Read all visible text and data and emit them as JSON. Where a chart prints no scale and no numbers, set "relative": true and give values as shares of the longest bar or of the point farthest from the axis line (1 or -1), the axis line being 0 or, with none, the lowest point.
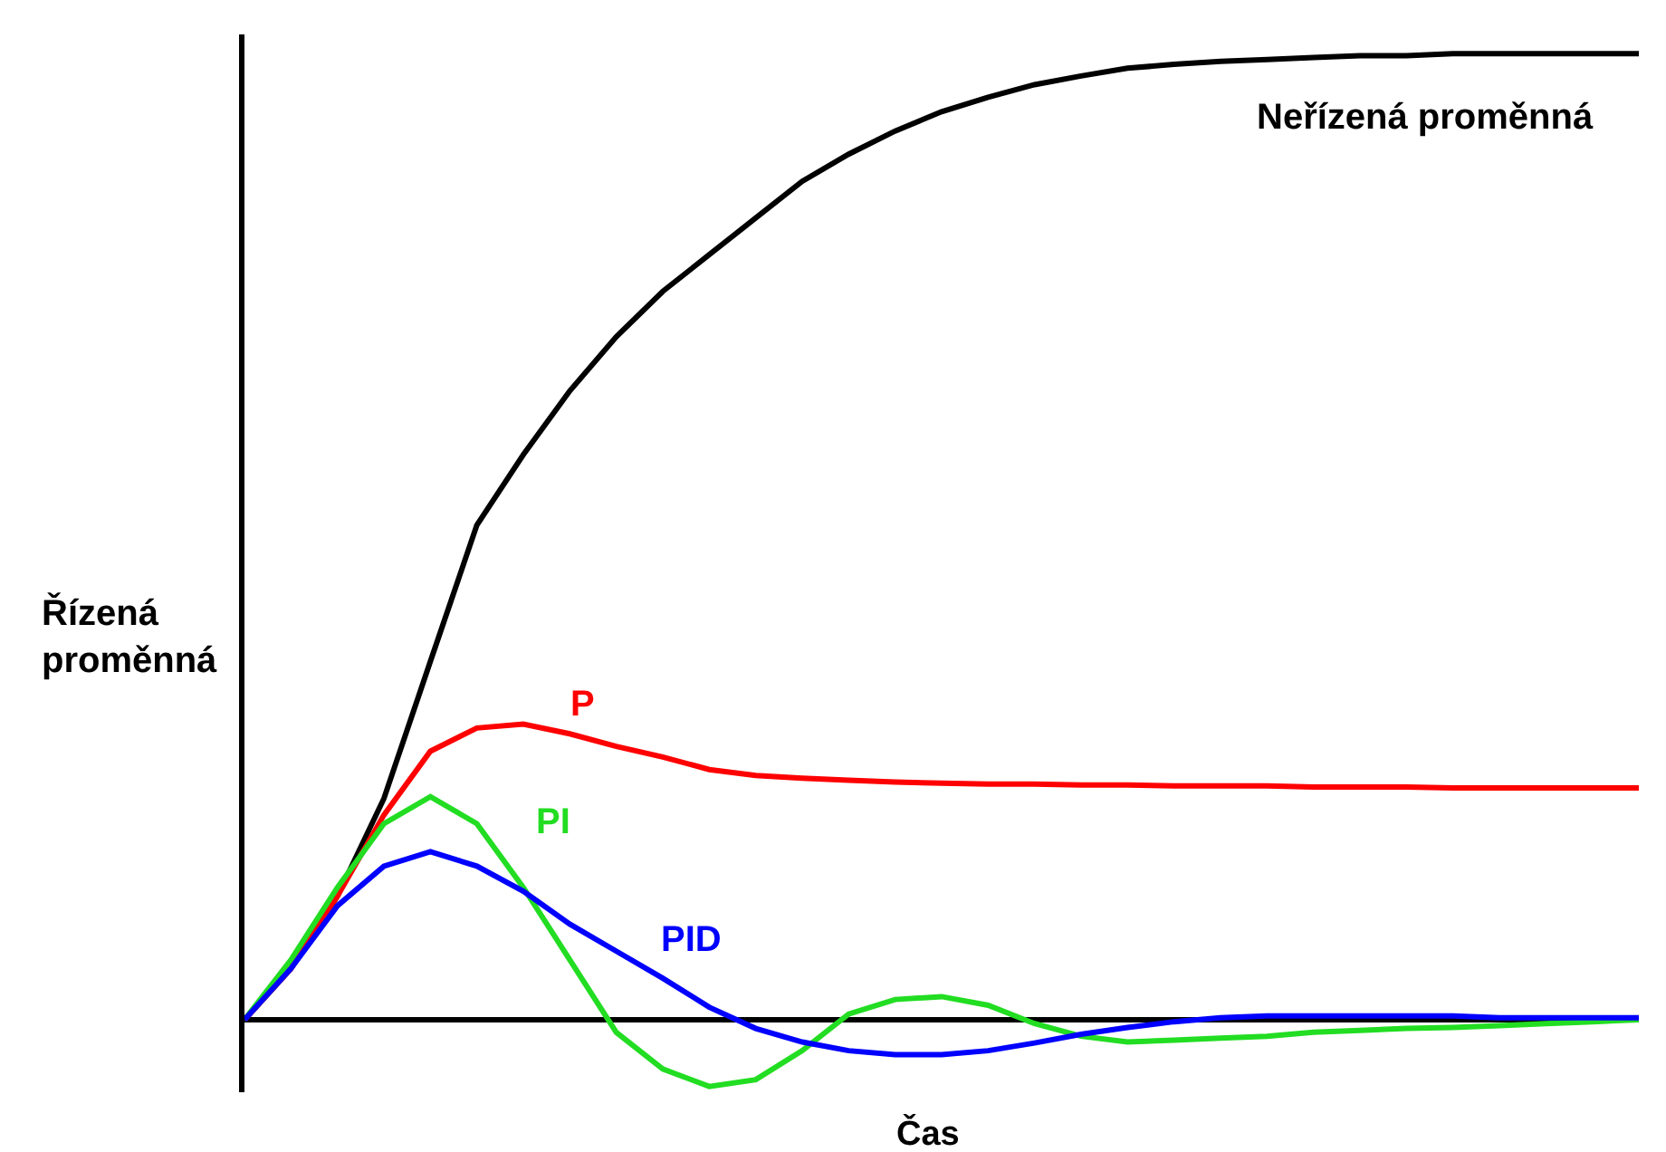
{
  "chart_data": {
    "type": "line",
    "relative": true,
    "xlabel": "Čas",
    "ylabel": "Řízená proměnná",
    "grid": false,
    "legend": false,
    "marker": "none",
    "line_style": "solid",
    "categories": [
      null,
      null,
      null,
      null,
      null,
      null,
      null,
      null,
      null,
      null,
      null,
      null,
      null,
      null,
      null,
      null,
      null,
      null,
      null,
      null,
      null,
      null,
      null,
      null,
      null,
      null,
      null,
      null,
      null,
      null,
      null
    ],
    "series": [
      {
        "name": "Neřízená proměnná",
        "color": "#000000",
        "values": [
          0,
          0.053,
          0.128,
          0.229,
          0.371,
          0.512,
          0.585,
          0.651,
          0.707,
          0.754,
          0.792,
          0.83,
          0.868,
          0.896,
          0.92,
          0.94,
          0.955,
          0.968,
          0.977,
          0.985,
          0.989,
          0.992,
          0.994,
          0.996,
          0.998,
          0.998,
          1,
          1,
          1,
          1,
          1
        ]
      },
      {
        "name": "P",
        "color": "#ff0000",
        "values": [
          0,
          0.053,
          0.128,
          0.212,
          0.278,
          0.302,
          0.306,
          0.296,
          0.283,
          0.272,
          0.259,
          0.253,
          0.25,
          0.248,
          0.246,
          0.245,
          0.244,
          0.244,
          0.243,
          0.243,
          0.242,
          0.242,
          0.242,
          0.241,
          0.241,
          0.241,
          0.24,
          0.24,
          0.24,
          0.24,
          0.24
        ]
      },
      {
        "name": "PI",
        "color": "#22dd22",
        "values": [
          0,
          0.062,
          0.137,
          0.203,
          0.231,
          0.203,
          0.137,
          0.062,
          -0.013,
          -0.051,
          -0.069,
          -0.062,
          -0.032,
          0.006,
          0.021,
          0.024,
          0.015,
          -0.004,
          -0.017,
          -0.023,
          -0.021,
          -0.019,
          -0.017,
          -0.013,
          -0.011,
          -0.009,
          -0.008,
          -0.006,
          -0.004,
          -0.002,
          0
        ]
      },
      {
        "name": "PID",
        "color": "#0000ff",
        "values": [
          0,
          0.053,
          0.118,
          0.159,
          0.174,
          0.159,
          0.133,
          0.099,
          0.071,
          0.043,
          0.013,
          -0.009,
          -0.023,
          -0.032,
          -0.036,
          -0.036,
          -0.032,
          -0.024,
          -0.015,
          -0.008,
          -0.002,
          0.002,
          0.004,
          0.004,
          0.004,
          0.004,
          0.004,
          0.002,
          0.002,
          0.002,
          0.002
        ]
      }
    ]
  }
}
